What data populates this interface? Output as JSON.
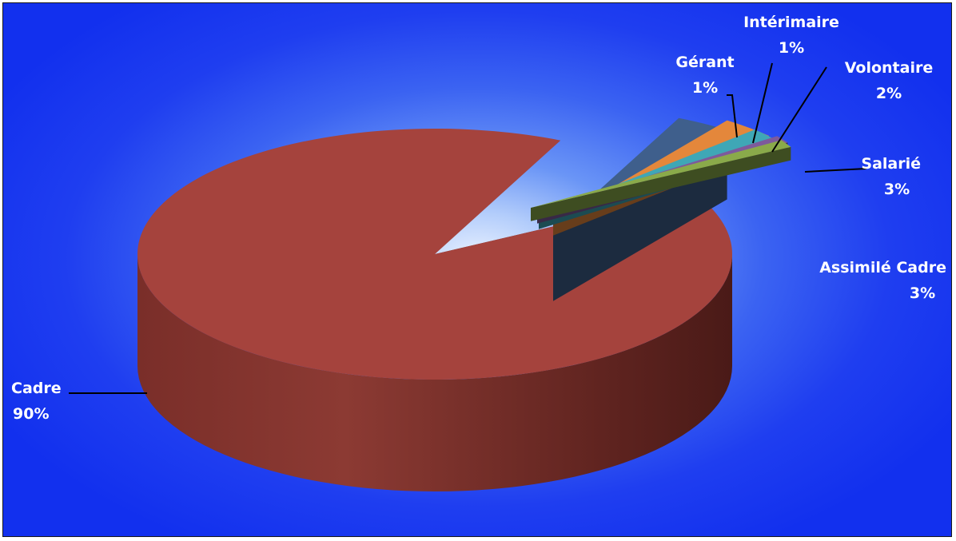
{
  "chart_data": {
    "type": "pie",
    "style": "3d-exploded",
    "title": "",
    "legend": "none",
    "slices": [
      {
        "category": "Cadre",
        "value": 90,
        "label": "90%",
        "color": "#a5433d"
      },
      {
        "category": "Assimilé Cadre",
        "value": 3,
        "label": "3%",
        "color": "#3f5f8c"
      },
      {
        "category": "Salarié",
        "value": 3,
        "label": "3%",
        "color": "#e4873b"
      },
      {
        "category": "Volontaire",
        "value": 2,
        "label": "2%",
        "color": "#3fa7b6"
      },
      {
        "category": "Intérimaire",
        "value": 1,
        "label": "1%",
        "color": "#7d5a9c"
      },
      {
        "category": "Gérant",
        "value": 1,
        "label": "1%",
        "color": "#8aaa4a"
      }
    ]
  }
}
